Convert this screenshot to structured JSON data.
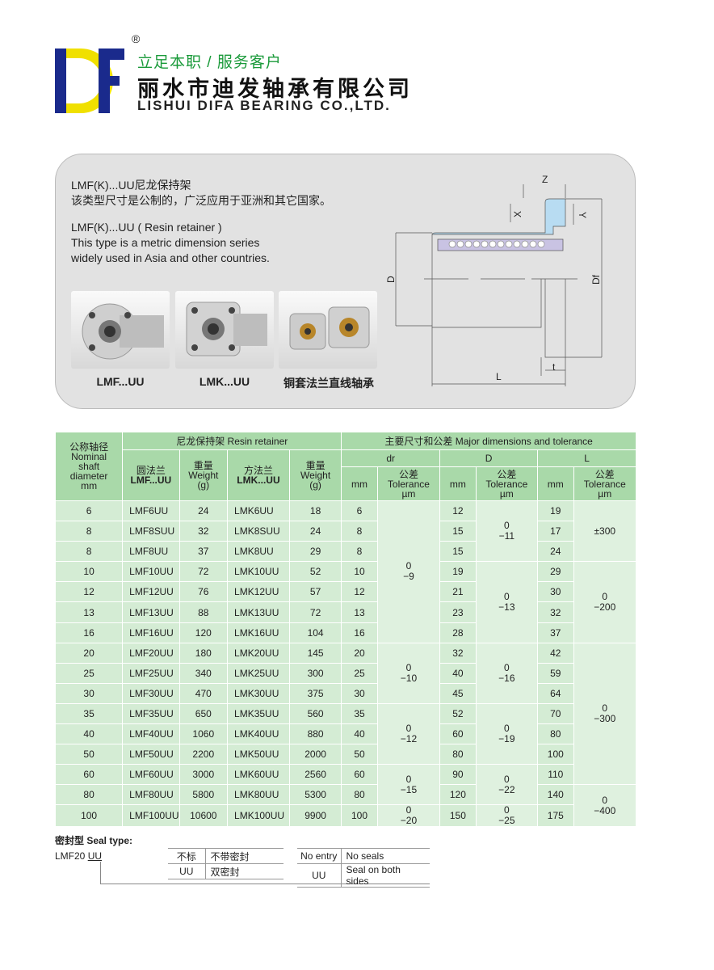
{
  "header": {
    "logo_text": "DF",
    "registered": "®",
    "slogan": "立足本职 / 服务客户",
    "company_cn": "丽水市迪发轴承有限公司",
    "company_en": "LISHUI DIFA BEARING CO.,LTD.",
    "brand_colors": {
      "blue": "#1a2a8c",
      "yellow": "#f0e000",
      "green": "#1a9a3a"
    }
  },
  "intro": {
    "cn_title": "LMF(K)...UU尼龙保持架",
    "cn_desc": "该类型尺寸是公制的，广泛应用于亚洲和其它国家。",
    "en_title": "LMF(K)...UU ( Resin retainer )",
    "en_desc_1": "This type is a metric dimension series",
    "en_desc_2": "widely used in Asia and other countries."
  },
  "photos": [
    {
      "label": "LMF...UU"
    },
    {
      "label": "LMK...UU"
    },
    {
      "label": "铜套法兰直线轴承"
    }
  ],
  "diagram": {
    "labels": {
      "z": "Z",
      "x": "X",
      "y": "Y",
      "d": "D",
      "df": "Df",
      "l": "L",
      "t": "t"
    }
  },
  "table": {
    "h_nominal": [
      "公称轴径",
      "Nominal",
      "shaft",
      "diameter",
      "mm"
    ],
    "h_resin": "尼龙保持架  Resin retainer",
    "h_major": "主要尺寸和公差 Major dimensions and tolerance",
    "h_lmf": [
      "圆法兰",
      "LMF...UU"
    ],
    "h_weight": [
      "重量",
      "Weight",
      "(g)"
    ],
    "h_lmk": [
      "方法兰",
      "LMK...UU"
    ],
    "h_dr": "dr",
    "h_D": "D",
    "h_L": "L",
    "h_mm": "mm",
    "h_tol": [
      "公差",
      "Tolerance",
      "µm"
    ],
    "rows": [
      [
        "6",
        "LMF6UU",
        "24",
        "LMK6UU",
        "18",
        "6",
        "12",
        "19"
      ],
      [
        "8",
        "LMF8SUU",
        "32",
        "LMK8SUU",
        "24",
        "8",
        "15",
        "17"
      ],
      [
        "8",
        "LMF8UU",
        "37",
        "LMK8UU",
        "29",
        "8",
        "15",
        "24"
      ],
      [
        "10",
        "LMF10UU",
        "72",
        "LMK10UU",
        "52",
        "10",
        "19",
        "29"
      ],
      [
        "12",
        "LMF12UU",
        "76",
        "LMK12UU",
        "57",
        "12",
        "21",
        "30"
      ],
      [
        "13",
        "LMF13UU",
        "88",
        "LMK13UU",
        "72",
        "13",
        "23",
        "32"
      ],
      [
        "16",
        "LMF16UU",
        "120",
        "LMK16UU",
        "104",
        "16",
        "28",
        "37"
      ],
      [
        "20",
        "LMF20UU",
        "180",
        "LMK20UU",
        "145",
        "20",
        "32",
        "42"
      ],
      [
        "25",
        "LMF25UU",
        "340",
        "LMK25UU",
        "300",
        "25",
        "40",
        "59"
      ],
      [
        "30",
        "LMF30UU",
        "470",
        "LMK30UU",
        "375",
        "30",
        "45",
        "64"
      ],
      [
        "35",
        "LMF35UU",
        "650",
        "LMK35UU",
        "560",
        "35",
        "52",
        "70"
      ],
      [
        "40",
        "LMF40UU",
        "1060",
        "LMK40UU",
        "880",
        "40",
        "60",
        "80"
      ],
      [
        "50",
        "LMF50UU",
        "2200",
        "LMK50UU",
        "2000",
        "50",
        "80",
        "100"
      ],
      [
        "60",
        "LMF60UU",
        "3000",
        "LMK60UU",
        "2560",
        "60",
        "90",
        "110"
      ],
      [
        "80",
        "LMF80UU",
        "5800",
        "LMK80UU",
        "5300",
        "80",
        "120",
        "140"
      ],
      [
        "100",
        "LMF100UU",
        "10600",
        "LMK100UU",
        "9900",
        "100",
        "150",
        "175"
      ]
    ],
    "dr_tol": [
      {
        "start": 0,
        "span": 7,
        "upper": "0",
        "lower": "−9"
      },
      {
        "start": 7,
        "span": 3,
        "upper": "0",
        "lower": "−10"
      },
      {
        "start": 10,
        "span": 3,
        "upper": "0",
        "lower": "−12"
      },
      {
        "start": 13,
        "span": 2,
        "upper": "0",
        "lower": "−15"
      },
      {
        "start": 15,
        "span": 1,
        "upper": "0",
        "lower": "−20"
      }
    ],
    "D_tol": [
      {
        "start": 0,
        "span": 3,
        "upper": "0",
        "lower": "−11"
      },
      {
        "start": 3,
        "span": 4,
        "upper": "0",
        "lower": "−13"
      },
      {
        "start": 7,
        "span": 3,
        "upper": "0",
        "lower": "−16"
      },
      {
        "start": 10,
        "span": 3,
        "upper": "0",
        "lower": "−19"
      },
      {
        "start": 13,
        "span": 2,
        "upper": "0",
        "lower": "−22"
      },
      {
        "start": 15,
        "span": 1,
        "upper": "0",
        "lower": "−25"
      }
    ],
    "L_tol": [
      {
        "start": 0,
        "span": 3,
        "upper": "±300",
        "lower": ""
      },
      {
        "start": 3,
        "span": 4,
        "upper": "0",
        "lower": "−200"
      },
      {
        "start": 7,
        "span": 7,
        "upper": "0",
        "lower": "−300"
      },
      {
        "start": 14,
        "span": 2,
        "upper": "0",
        "lower": "−400"
      }
    ]
  },
  "seal": {
    "title": "密封型 Seal type:",
    "code_prefix": "LMF20 ",
    "code_suffix": "UU",
    "cn": [
      [
        "不标",
        "不带密封"
      ],
      [
        "UU",
        "双密封"
      ]
    ],
    "en": [
      [
        "No entry",
        "No seals"
      ],
      [
        "UU",
        "Seal on both sides"
      ]
    ]
  }
}
